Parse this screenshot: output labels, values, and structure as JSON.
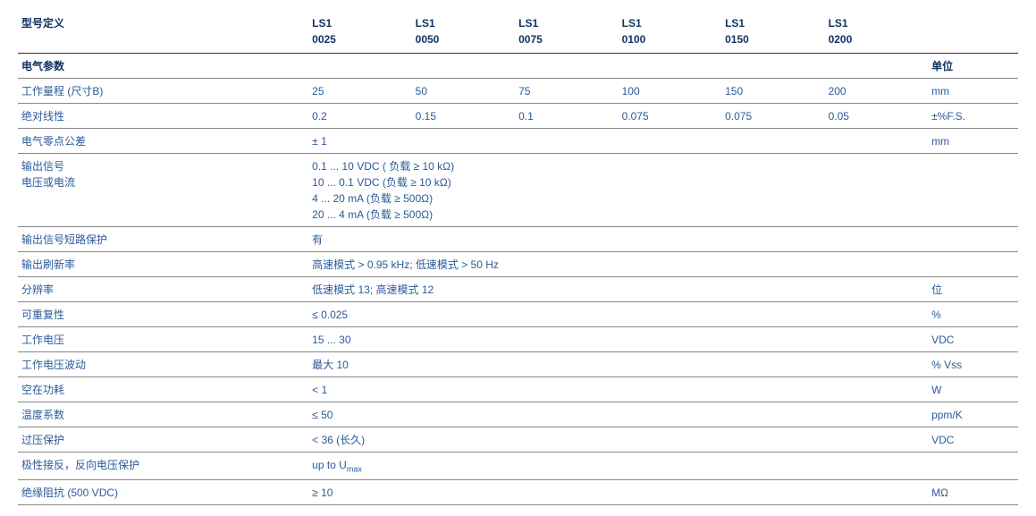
{
  "style": {
    "header_color": "#11315f",
    "label_color": "#2a5a9a",
    "value_color": "#2a5a9a",
    "border_major": "#333333",
    "border_minor": "#888888",
    "background": "#ffffff",
    "font_size_header": 12,
    "font_size_body": 12
  },
  "headers": {
    "param": "型号定义",
    "c1a": "LS1",
    "c1b": "0025",
    "c2a": "LS1",
    "c2b": "0050",
    "c3a": "LS1",
    "c3b": "0075",
    "c4a": "LS1",
    "c4b": "0100",
    "c5a": "LS1",
    "c5b": "0150",
    "c6a": "LS1",
    "c6b": "0200",
    "unit": ""
  },
  "section": {
    "title": "电气参数",
    "unit_label": "单位"
  },
  "rows": {
    "r1": {
      "label": "工作量程 (尺寸B)",
      "v": [
        "25",
        "50",
        "75",
        "100",
        "150",
        "200"
      ],
      "unit": "mm"
    },
    "r2": {
      "label": "绝对线性",
      "v": [
        "0.2",
        "0.15",
        "0.1",
        "0.075",
        "0.075",
        "0.05"
      ],
      "unit": "±%F.S."
    },
    "r3": {
      "label": "电气零点公差",
      "span": "± 1",
      "unit": "mm"
    },
    "r4": {
      "label_l1": "输出信号",
      "label_l2": "电压或电流",
      "span_l1": "0.1 ... 10 VDC ( 负载 ≥ 10 kΩ)",
      "span_l2": "10 ... 0.1 VDC (负载 ≥ 10 kΩ)",
      "span_l3": "4 ... 20 mA (负载 ≥ 500Ω)",
      "span_l4": "20 ... 4 mA (负载 ≥ 500Ω)",
      "unit": ""
    },
    "r5": {
      "label": "输出信号短路保护",
      "span": "有",
      "unit": ""
    },
    "r6": {
      "label": "输出刷新率",
      "span": "高速模式 > 0.95 kHz; 低速模式 > 50 Hz",
      "unit": ""
    },
    "r7": {
      "label": "分辨率",
      "span": "低速模式 13; 高速模式 12",
      "unit": "位"
    },
    "r8": {
      "label": "可重复性",
      "span": "≤ 0.025",
      "unit": "%"
    },
    "r9": {
      "label": "工作电压",
      "span": "15 ... 30",
      "unit": "VDC"
    },
    "r10": {
      "label": "工作电压波动",
      "span": "最大 10",
      "unit": "% Vss"
    },
    "r11": {
      "label": "空在功耗",
      "span": "< 1",
      "unit": "W"
    },
    "r12": {
      "label": "温度系数",
      "span": "≤ 50",
      "unit": "ppm/K"
    },
    "r13": {
      "label": "过压保护",
      "span": "< 36 (长久)",
      "unit": "VDC"
    },
    "r14": {
      "label": "极性接反，反向电压保护",
      "span_pre": "up to U",
      "span_sub": "max",
      "unit": ""
    },
    "r15": {
      "label": "绝缘阻抗 (500 VDC)",
      "span": "≥ 10",
      "unit": "MΩ"
    }
  }
}
